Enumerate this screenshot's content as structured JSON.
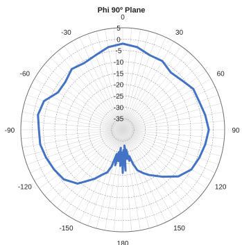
{
  "chart_data": {
    "type": "polar",
    "title": "Phi 90º Plane",
    "angle_labels": [
      "0",
      "30",
      "60",
      "90",
      "120",
      "150",
      "180",
      "-150",
      "-120",
      "-90",
      "-60",
      "-30"
    ],
    "angle_values": [
      0,
      30,
      60,
      90,
      120,
      150,
      180,
      -150,
      -120,
      -90,
      -60,
      -30
    ],
    "radial_labels": [
      "5",
      "0",
      "-5",
      "-10",
      "-15",
      "-20",
      "-25",
      "-30",
      "-35"
    ],
    "radial_values": [
      5,
      0,
      -5,
      -10,
      -15,
      -20,
      -25,
      -30,
      -35
    ],
    "rlim": [
      -40,
      5
    ],
    "grid": true,
    "series": [
      {
        "color": "#4472c4",
        "theta": [
          0,
          10,
          20,
          30,
          40,
          50,
          60,
          70,
          80,
          90,
          100,
          110,
          120,
          130,
          140,
          150,
          155,
          160,
          163,
          166,
          168,
          170,
          172,
          174,
          176,
          178,
          180,
          182,
          184,
          186,
          188,
          190,
          192,
          194,
          197,
          200,
          205,
          210,
          220,
          230,
          240,
          250,
          260,
          270,
          280,
          290,
          300,
          310,
          320,
          330,
          340,
          350,
          360
        ],
        "r": [
          -2,
          -3,
          -5,
          -5,
          -7,
          -6,
          -4,
          -4,
          -3,
          -2,
          -3,
          -4,
          -5,
          -8,
          -13,
          -17,
          -19,
          -21,
          -24,
          -28,
          -26,
          -31,
          -27,
          -33,
          -22,
          -31,
          -21,
          -30,
          -24,
          -32,
          -26,
          -30,
          -24,
          -29,
          -23,
          -20,
          -18,
          -15,
          -9,
          -6,
          -5,
          -4,
          -3,
          -3,
          -2,
          -3,
          -7,
          -7,
          -5,
          -6,
          -5,
          -3,
          -2
        ]
      }
    ]
  }
}
